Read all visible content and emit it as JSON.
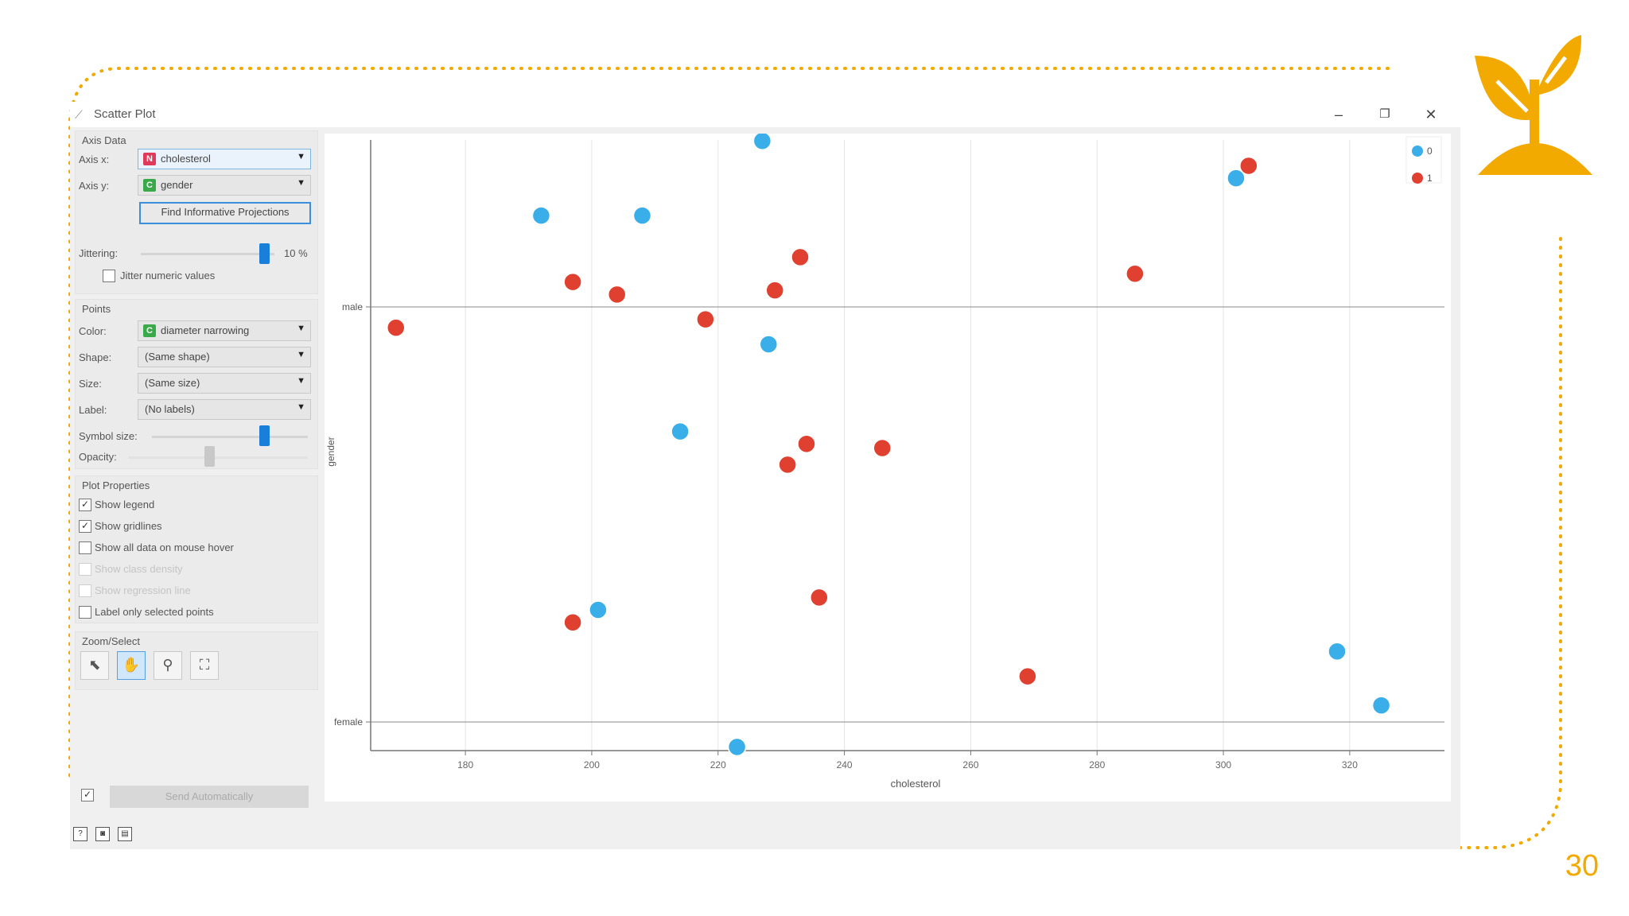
{
  "slide": {
    "page_number": "30",
    "accent_color": "#f2a900"
  },
  "window": {
    "title": "Scatter Plot",
    "title_icon": "scatter-plot-icon",
    "controls": {
      "minimize": "–",
      "restore": "❐",
      "close": "✕"
    }
  },
  "axis_data": {
    "title": "Axis Data",
    "x_label": "Axis x:",
    "x_value": "cholesterol",
    "x_type": "N",
    "y_label": "Axis y:",
    "y_value": "gender",
    "y_type": "C",
    "find_button": "Find Informative Projections",
    "jitter_label": "Jittering:",
    "jitter_value": "10 %",
    "jitter_level": 0.92,
    "jitter_numeric_label": "Jitter numeric values",
    "jitter_numeric_checked": false
  },
  "points": {
    "title": "Points",
    "color_label": "Color:",
    "color_value": "diameter narrowing",
    "color_type": "C",
    "shape_label": "Shape:",
    "shape_value": "(Same shape)",
    "size_label": "Size:",
    "size_value": "(Same size)",
    "label_label": "Label:",
    "label_value": "(No labels)",
    "symbol_size_label": "Symbol size:",
    "symbol_size_level": 0.72,
    "opacity_label": "Opacity:",
    "opacity_level": 0.45
  },
  "plot_properties": {
    "title": "Plot Properties",
    "options": [
      {
        "label": "Show legend",
        "checked": true,
        "enabled": true
      },
      {
        "label": "Show gridlines",
        "checked": true,
        "enabled": true
      },
      {
        "label": "Show all data on mouse hover",
        "checked": false,
        "enabled": true
      },
      {
        "label": "Show class density",
        "checked": false,
        "enabled": false
      },
      {
        "label": "Show regression line",
        "checked": false,
        "enabled": false
      },
      {
        "label": "Label only selected points",
        "checked": false,
        "enabled": true
      }
    ]
  },
  "zoom_select": {
    "title": "Zoom/Select",
    "tools": [
      {
        "name": "select-tool",
        "icon": "pointer-icon",
        "glyph": "⬉",
        "active": false
      },
      {
        "name": "pan-tool",
        "icon": "hand-icon",
        "glyph": "✋",
        "active": true
      },
      {
        "name": "zoom-tool",
        "icon": "magnifier-icon",
        "glyph": "⚲",
        "active": false
      },
      {
        "name": "reset-zoom-tool",
        "icon": "fit-icon",
        "glyph": "⛶",
        "active": false
      }
    ]
  },
  "send": {
    "label": "Send Automatically",
    "auto_checked": true
  },
  "status_bar": {
    "icons": [
      "help-icon",
      "screenshot-icon",
      "report-icon"
    ],
    "glyphs": [
      "?",
      "◙",
      "▤"
    ]
  },
  "colors": {
    "class_0": "#3aaee8",
    "class_1": "#e0402f",
    "slider": "#1a7fd8",
    "legend_back": "#ffffff"
  },
  "chart_data": {
    "type": "scatter",
    "xlabel": "cholesterol",
    "ylabel": "gender",
    "xlim": [
      165,
      335
    ],
    "x_ticks": [
      180,
      200,
      220,
      240,
      260,
      280,
      300,
      320
    ],
    "y_categories": [
      "female",
      "male"
    ],
    "grid": true,
    "legend": "top-right",
    "series": [
      {
        "name": "0",
        "color": "#3aaee8",
        "points": [
          {
            "x": 227,
            "y": 1.4
          },
          {
            "x": 192,
            "y": 1.22
          },
          {
            "x": 208,
            "y": 1.22
          },
          {
            "x": 302,
            "y": 1.31
          },
          {
            "x": 228,
            "y": 0.91
          },
          {
            "x": 214,
            "y": 0.7
          },
          {
            "x": 201,
            "y": 0.27
          },
          {
            "x": 318,
            "y": 0.17
          },
          {
            "x": 325,
            "y": 0.04
          },
          {
            "x": 223,
            "y": -0.06
          }
        ]
      },
      {
        "name": "1",
        "color": "#e0402f",
        "points": [
          {
            "x": 304,
            "y": 1.34
          },
          {
            "x": 233,
            "y": 1.12
          },
          {
            "x": 286,
            "y": 1.08
          },
          {
            "x": 197,
            "y": 1.06
          },
          {
            "x": 204,
            "y": 1.03
          },
          {
            "x": 229,
            "y": 1.04
          },
          {
            "x": 169,
            "y": 0.95
          },
          {
            "x": 218,
            "y": 0.97
          },
          {
            "x": 234,
            "y": 0.67
          },
          {
            "x": 246,
            "y": 0.66
          },
          {
            "x": 231,
            "y": 0.62
          },
          {
            "x": 236,
            "y": 0.3
          },
          {
            "x": 197,
            "y": 0.24
          },
          {
            "x": 269,
            "y": 0.11
          }
        ]
      }
    ]
  }
}
